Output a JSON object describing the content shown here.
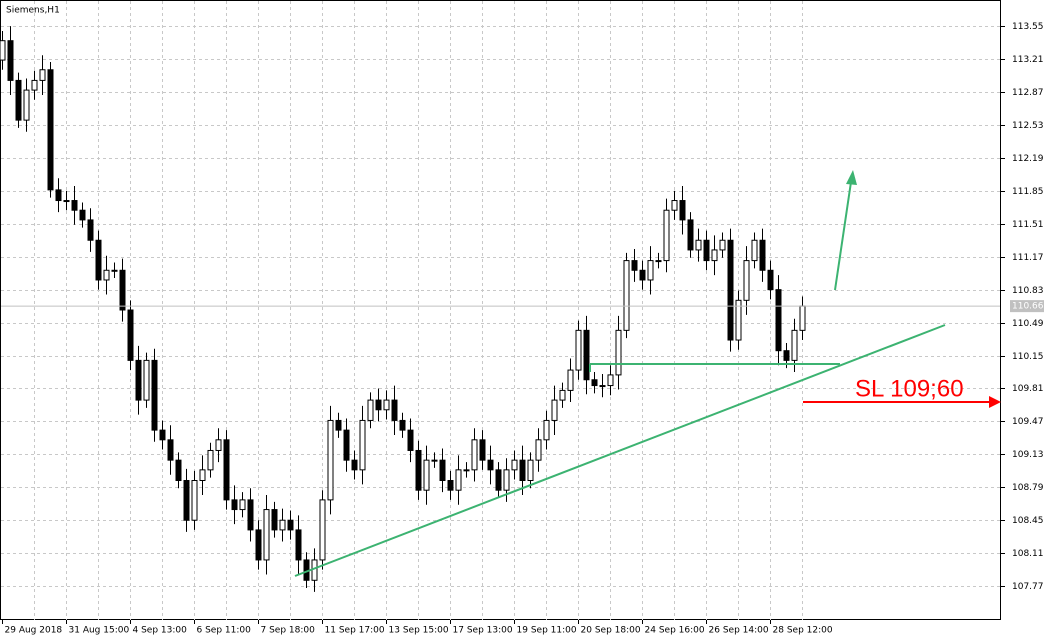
{
  "chart_data": {
    "type": "candlestick",
    "title": "Siemens,H1",
    "categories": [
      "29 Aug 2018",
      null,
      null,
      null,
      null,
      null,
      null,
      null,
      "31 Aug 15:00",
      null,
      null,
      null,
      null,
      null,
      null,
      null,
      "4 Sep 13:00",
      null,
      null,
      null,
      null,
      null,
      null,
      null,
      "6 Sep 11:00",
      null,
      null,
      null,
      null,
      null,
      null,
      null,
      "7 Sep 18:00",
      null,
      null,
      null,
      null,
      null,
      null,
      null,
      "11 Sep 17:00",
      null,
      null,
      null,
      null,
      null,
      null,
      null,
      "13 Sep 15:00",
      null,
      null,
      null,
      null,
      null,
      null,
      null,
      "17 Sep 13:00",
      null,
      null,
      null,
      null,
      null,
      null,
      null,
      "19 Sep 11:00",
      null,
      null,
      null,
      null,
      null,
      null,
      null,
      "20 Sep 18:00",
      null,
      null,
      null,
      null,
      null,
      null,
      null,
      "24 Sep 16:00",
      null,
      null,
      null,
      null,
      null,
      null,
      null,
      "26 Sep 14:00",
      null,
      null,
      null,
      null,
      null,
      null,
      null,
      "28 Sep 12:00",
      null,
      null,
      null,
      null
    ],
    "open": [
      113.2,
      113.4,
      112.99,
      112.58,
      112.89,
      112.99,
      113.1,
      111.86,
      111.75,
      111.75,
      111.65,
      111.55,
      111.34,
      110.93,
      111.03,
      111.03,
      110.62,
      110.1,
      109.69,
      110.1,
      109.38,
      109.28,
      109.07,
      108.86,
      108.45,
      108.86,
      108.97,
      109.17,
      109.28,
      108.66,
      108.56,
      108.66,
      108.35,
      108.04,
      108.56,
      108.35,
      108.45,
      108.35,
      108.04,
      107.83,
      108.04,
      108.66,
      109.48,
      109.38,
      109.07,
      108.97,
      109.48,
      109.69,
      109.59,
      109.69,
      109.48,
      109.38,
      109.17,
      108.76,
      109.07,
      109.07,
      108.86,
      108.76,
      108.97,
      108.97,
      109.28,
      109.07,
      108.97,
      108.76,
      108.97,
      109.07,
      108.86,
      109.07,
      109.28,
      109.48,
      109.69,
      109.79,
      110.0,
      110.41,
      109.9,
      109.84,
      109.84,
      109.95,
      110.41,
      111.13,
      111.03,
      110.93,
      111.13,
      111.13,
      111.65,
      111.75,
      111.55,
      111.24,
      111.34,
      111.13,
      111.24,
      111.34,
      110.31,
      110.72,
      111.13,
      111.34,
      111.03,
      110.83,
      110.2,
      110.1,
      110.41
    ],
    "high": [
      113.5,
      113.55,
      113.07,
      113.01,
      113.09,
      113.25,
      113.18,
      111.98,
      111.85,
      111.9,
      111.73,
      111.67,
      111.44,
      111.18,
      111.11,
      111.15,
      110.72,
      110.25,
      110.18,
      110.22,
      109.48,
      109.43,
      109.15,
      108.98,
      108.96,
      109.12,
      109.25,
      109.4,
      109.38,
      108.81,
      108.74,
      108.78,
      108.45,
      108.71,
      108.64,
      108.57,
      108.55,
      108.5,
      108.12,
      108.16,
      108.76,
      109.63,
      109.56,
      109.5,
      109.17,
      109.63,
      109.77,
      109.81,
      109.79,
      109.84,
      109.56,
      109.5,
      109.27,
      109.22,
      109.15,
      109.19,
      108.96,
      109.12,
      109.05,
      109.4,
      109.38,
      109.22,
      109.05,
      109.09,
      109.17,
      109.22,
      109.15,
      109.4,
      109.58,
      109.84,
      109.87,
      110.12,
      110.51,
      110.56,
      109.98,
      109.96,
      110.05,
      110.56,
      111.21,
      111.25,
      111.13,
      111.28,
      111.21,
      111.77,
      111.85,
      111.9,
      111.63,
      111.46,
      111.44,
      111.39,
      111.42,
      111.46,
      110.82,
      111.28,
      111.42,
      111.46,
      111.13,
      110.98,
      110.28,
      110.53,
      110.76
    ],
    "low": [
      113.1,
      112.84,
      112.5,
      112.46,
      112.79,
      112.84,
      111.78,
      111.63,
      111.65,
      111.5,
      111.47,
      111.22,
      110.83,
      110.78,
      110.95,
      110.5,
      110.0,
      109.54,
      109.61,
      109.26,
      109.18,
      108.92,
      108.78,
      108.33,
      108.35,
      108.71,
      108.89,
      109.05,
      108.56,
      108.41,
      108.48,
      108.23,
      107.94,
      107.89,
      108.27,
      108.23,
      108.25,
      107.89,
      107.75,
      107.71,
      107.94,
      108.51,
      109.3,
      108.95,
      108.87,
      108.82,
      109.4,
      109.47,
      109.49,
      109.33,
      109.3,
      109.05,
      108.66,
      108.61,
      108.99,
      108.74,
      108.66,
      108.61,
      108.89,
      108.85,
      108.97,
      108.82,
      108.68,
      108.64,
      108.87,
      108.71,
      108.78,
      108.95,
      109.18,
      109.33,
      109.61,
      109.67,
      109.9,
      109.75,
      109.76,
      109.72,
      109.74,
      109.8,
      110.33,
      110.91,
      110.83,
      110.78,
      111.05,
      111.01,
      111.55,
      111.4,
      111.16,
      111.12,
      111.03,
      110.98,
      111.16,
      110.19,
      110.21,
      110.57,
      111.05,
      110.91,
      110.73,
      110.05,
      110.02,
      109.98,
      110.31
    ],
    "close": [
      113.4,
      112.99,
      112.58,
      112.89,
      112.99,
      113.1,
      111.86,
      111.75,
      111.75,
      111.65,
      111.55,
      111.34,
      110.93,
      111.03,
      111.03,
      110.62,
      110.1,
      109.69,
      110.1,
      109.38,
      109.28,
      109.07,
      108.86,
      108.45,
      108.86,
      108.97,
      109.17,
      109.28,
      108.66,
      108.56,
      108.66,
      108.35,
      108.04,
      108.56,
      108.35,
      108.45,
      108.35,
      108.04,
      107.83,
      108.04,
      108.66,
      109.48,
      109.38,
      109.07,
      108.97,
      109.48,
      109.69,
      109.59,
      109.69,
      109.48,
      109.38,
      109.17,
      108.76,
      109.07,
      109.07,
      108.86,
      108.76,
      108.97,
      108.97,
      109.28,
      109.07,
      108.97,
      108.76,
      108.97,
      109.07,
      108.86,
      109.07,
      109.28,
      109.48,
      109.69,
      109.79,
      110.0,
      110.41,
      109.9,
      109.84,
      109.84,
      109.95,
      110.41,
      111.13,
      111.03,
      110.93,
      111.13,
      111.13,
      111.65,
      111.75,
      111.55,
      111.24,
      111.34,
      111.13,
      111.24,
      111.34,
      110.31,
      110.72,
      111.13,
      111.34,
      111.03,
      110.83,
      110.2,
      110.1,
      110.41,
      110.66
    ],
    "current_price": 110.66,
    "annotations": [
      "SL 109;60"
    ],
    "ylim": [
      107.42,
      113.82
    ],
    "yticks": [
      113.55,
      113.21,
      112.87,
      112.53,
      112.19,
      111.85,
      111.51,
      111.17,
      110.83,
      110.49,
      110.15,
      109.81,
      109.47,
      109.13,
      108.79,
      108.45,
      108.11,
      107.77
    ],
    "grid": true,
    "color": "#000000"
  }
}
